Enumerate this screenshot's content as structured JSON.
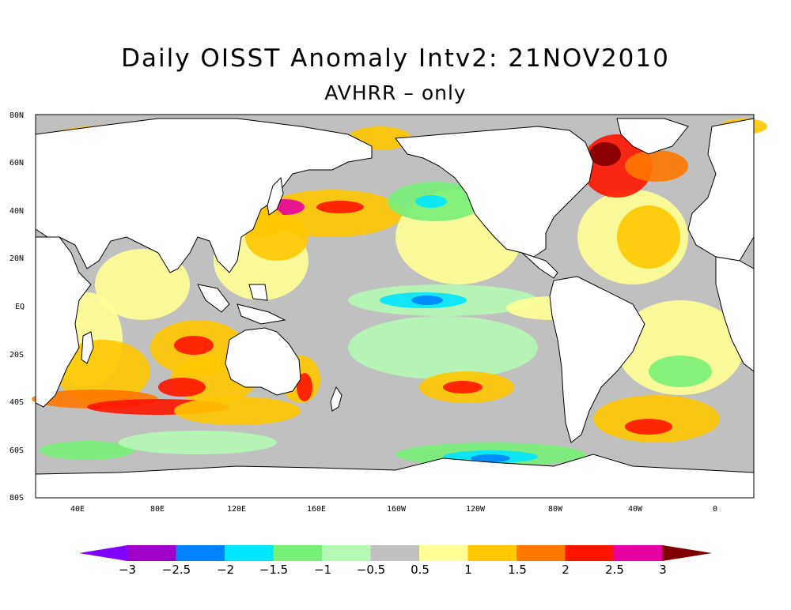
{
  "title": "Daily OISST Anomaly Intv2: 21NOV2010",
  "subtitle": "AVHRR – only",
  "lat_labels": [
    "80N",
    "60N",
    "40N",
    "20N",
    "EQ",
    "20S",
    "40S",
    "60S",
    "80S"
  ],
  "lon_labels": [
    "40E",
    "80E",
    "120E",
    "160E",
    "160W",
    "120W",
    "80W",
    "40W",
    "0"
  ],
  "colorbar": {
    "tick_labels": [
      "−3",
      "−2.5",
      "−2",
      "−1.5",
      "−1",
      "−0.5",
      "0.5",
      "1",
      "1.5",
      "2",
      "2.5",
      "3"
    ],
    "colors": [
      "#7f00ff",
      "#a000c8",
      "#0082ff",
      "#00e6ff",
      "#78f078",
      "#b4fab4",
      "#c0c0c0",
      "#ffff96",
      "#ffc800",
      "#ff7800",
      "#ff1400",
      "#e600a0",
      "#800000"
    ]
  },
  "map_colors": {
    "ocean_neutral": "#c0c0c0",
    "land": "#ffffff",
    "coast": "#000000"
  }
}
